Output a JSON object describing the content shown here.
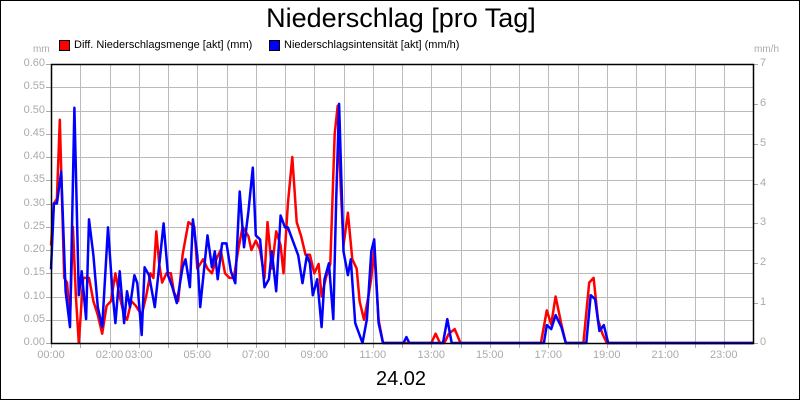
{
  "chart_data": {
    "type": "line",
    "title": "Niederschlag [pro Tag]",
    "xlabel": "24.02",
    "ylabel_left": "mm",
    "ylabel_right": "mm/h",
    "ylim_left": [
      0,
      0.6
    ],
    "ylim_right": [
      0,
      7
    ],
    "grid": true,
    "legend_position": "top",
    "y_ticks_left": [
      "0.00",
      "0.05",
      "0.10",
      "0.15",
      "0.20",
      "0.25",
      "0.30",
      "0.35",
      "0.40",
      "0.45",
      "0.50",
      "0.55",
      "0.60"
    ],
    "y_ticks_right": [
      "0",
      "1",
      "2",
      "3",
      "4",
      "5",
      "6",
      "7"
    ],
    "x_tick_labels": [
      {
        "label": "00:00",
        "hour": 0
      },
      {
        "label": "02:00",
        "hour": 2
      },
      {
        "label": "03:00",
        "hour": 3
      },
      {
        "label": "05:00",
        "hour": 5
      },
      {
        "label": "07:00",
        "hour": 7
      },
      {
        "label": "09:00",
        "hour": 9
      },
      {
        "label": "11:00",
        "hour": 11
      },
      {
        "label": "13:00",
        "hour": 13
      },
      {
        "label": "15:00",
        "hour": 15
      },
      {
        "label": "17:00",
        "hour": 17
      },
      {
        "label": "19:00",
        "hour": 19
      },
      {
        "label": "21:00",
        "hour": 21
      },
      {
        "label": "23:00",
        "hour": 23
      }
    ],
    "series": [
      {
        "name": "Diff. Niederschlagsmenge [akt] (mm)",
        "axis": "left",
        "color": "#ff0000",
        "points": [
          [
            0.0,
            0.21
          ],
          [
            0.1,
            0.3
          ],
          [
            0.2,
            0.31
          ],
          [
            0.3,
            0.48
          ],
          [
            0.45,
            0.14
          ],
          [
            0.55,
            0.13
          ],
          [
            0.65,
            0.05
          ],
          [
            0.75,
            0.25
          ],
          [
            0.85,
            0.1
          ],
          [
            0.95,
            0.0
          ],
          [
            1.1,
            0.14
          ],
          [
            1.3,
            0.14
          ],
          [
            1.45,
            0.09
          ],
          [
            1.6,
            0.06
          ],
          [
            1.75,
            0.02
          ],
          [
            1.9,
            0.08
          ],
          [
            2.05,
            0.09
          ],
          [
            2.2,
            0.15
          ],
          [
            2.35,
            0.1
          ],
          [
            2.5,
            0.06
          ],
          [
            2.6,
            0.05
          ],
          [
            2.75,
            0.09
          ],
          [
            2.9,
            0.08
          ],
          [
            3.0,
            0.07
          ],
          [
            3.1,
            0.06
          ],
          [
            3.25,
            0.1
          ],
          [
            3.4,
            0.15
          ],
          [
            3.5,
            0.14
          ],
          [
            3.6,
            0.24
          ],
          [
            3.7,
            0.17
          ],
          [
            3.8,
            0.13
          ],
          [
            3.95,
            0.15
          ],
          [
            4.1,
            0.15
          ],
          [
            4.2,
            0.11
          ],
          [
            4.35,
            0.09
          ],
          [
            4.5,
            0.19
          ],
          [
            4.7,
            0.26
          ],
          [
            4.9,
            0.25
          ],
          [
            5.0,
            0.16
          ],
          [
            5.2,
            0.18
          ],
          [
            5.35,
            0.16
          ],
          [
            5.5,
            0.15
          ],
          [
            5.65,
            0.18
          ],
          [
            5.8,
            0.2
          ],
          [
            5.95,
            0.15
          ],
          [
            6.1,
            0.14
          ],
          [
            6.25,
            0.14
          ],
          [
            6.4,
            0.2
          ],
          [
            6.55,
            0.25
          ],
          [
            6.75,
            0.23
          ],
          [
            6.85,
            0.2
          ],
          [
            7.0,
            0.22
          ],
          [
            7.15,
            0.2
          ],
          [
            7.3,
            0.14
          ],
          [
            7.4,
            0.26
          ],
          [
            7.55,
            0.16
          ],
          [
            7.7,
            0.24
          ],
          [
            7.85,
            0.21
          ],
          [
            7.95,
            0.15
          ],
          [
            8.1,
            0.3
          ],
          [
            8.25,
            0.4
          ],
          [
            8.4,
            0.26
          ],
          [
            8.55,
            0.23
          ],
          [
            8.7,
            0.19
          ],
          [
            8.85,
            0.19
          ],
          [
            9.0,
            0.15
          ],
          [
            9.15,
            0.17
          ],
          [
            9.25,
            0.1
          ],
          [
            9.4,
            0.14
          ],
          [
            9.55,
            0.17
          ],
          [
            9.7,
            0.45
          ],
          [
            9.8,
            0.51
          ],
          [
            9.9,
            0.34
          ],
          [
            10.0,
            0.21
          ],
          [
            10.15,
            0.28
          ],
          [
            10.3,
            0.18
          ],
          [
            10.45,
            0.16
          ],
          [
            10.55,
            0.09
          ],
          [
            10.7,
            0.05
          ],
          [
            10.85,
            0.1
          ],
          [
            10.95,
            0.14
          ],
          [
            11.05,
            0.2
          ],
          [
            11.2,
            0.05
          ],
          [
            11.35,
            0.0
          ],
          [
            12.0,
            0.0
          ],
          [
            13.0,
            0.0
          ],
          [
            13.15,
            0.02
          ],
          [
            13.3,
            0.0
          ],
          [
            13.45,
            0.0
          ],
          [
            13.6,
            0.02
          ],
          [
            13.8,
            0.03
          ],
          [
            14.0,
            0.0
          ],
          [
            16.75,
            0.0
          ],
          [
            16.95,
            0.07
          ],
          [
            17.1,
            0.04
          ],
          [
            17.25,
            0.1
          ],
          [
            17.45,
            0.04
          ],
          [
            17.6,
            0.0
          ],
          [
            18.2,
            0.0
          ],
          [
            18.4,
            0.13
          ],
          [
            18.55,
            0.14
          ],
          [
            18.7,
            0.05
          ],
          [
            18.85,
            0.02
          ],
          [
            19.0,
            0.0
          ],
          [
            24.0,
            0.0
          ]
        ]
      },
      {
        "name": "Niederschlagsintensität [akt] (mm/h)",
        "axis": "right",
        "color": "#0000ff",
        "points": [
          [
            0.0,
            1.85
          ],
          [
            0.1,
            3.5
          ],
          [
            0.2,
            3.5
          ],
          [
            0.35,
            4.3
          ],
          [
            0.5,
            1.3
          ],
          [
            0.65,
            0.4
          ],
          [
            0.8,
            5.9
          ],
          [
            0.95,
            1.2
          ],
          [
            1.05,
            1.8
          ],
          [
            1.2,
            0.6
          ],
          [
            1.3,
            3.1
          ],
          [
            1.45,
            2.2
          ],
          [
            1.6,
            0.9
          ],
          [
            1.75,
            0.4
          ],
          [
            1.95,
            2.9
          ],
          [
            2.1,
            1.3
          ],
          [
            2.2,
            0.5
          ],
          [
            2.35,
            1.8
          ],
          [
            2.5,
            0.5
          ],
          [
            2.6,
            1.3
          ],
          [
            2.7,
            0.9
          ],
          [
            2.85,
            1.7
          ],
          [
            2.95,
            1.5
          ],
          [
            3.1,
            0.2
          ],
          [
            3.2,
            1.9
          ],
          [
            3.35,
            1.7
          ],
          [
            3.55,
            0.9
          ],
          [
            3.65,
            1.6
          ],
          [
            3.85,
            3.0
          ],
          [
            4.0,
            1.7
          ],
          [
            4.15,
            1.4
          ],
          [
            4.3,
            1.0
          ],
          [
            4.5,
            1.9
          ],
          [
            4.6,
            2.1
          ],
          [
            4.75,
            1.4
          ],
          [
            4.85,
            3.1
          ],
          [
            5.0,
            2.2
          ],
          [
            5.1,
            0.9
          ],
          [
            5.35,
            2.7
          ],
          [
            5.5,
            1.9
          ],
          [
            5.6,
            2.3
          ],
          [
            5.7,
            1.6
          ],
          [
            5.85,
            2.5
          ],
          [
            6.0,
            2.5
          ],
          [
            6.15,
            1.8
          ],
          [
            6.3,
            1.5
          ],
          [
            6.45,
            3.8
          ],
          [
            6.6,
            2.4
          ],
          [
            6.75,
            3.3
          ],
          [
            6.9,
            4.4
          ],
          [
            7.0,
            2.7
          ],
          [
            7.15,
            2.6
          ],
          [
            7.3,
            1.4
          ],
          [
            7.45,
            1.6
          ],
          [
            7.55,
            2.3
          ],
          [
            7.7,
            1.3
          ],
          [
            7.85,
            3.2
          ],
          [
            8.0,
            2.9
          ],
          [
            8.1,
            2.9
          ],
          [
            8.3,
            2.5
          ],
          [
            8.45,
            2.2
          ],
          [
            8.6,
            1.5
          ],
          [
            8.75,
            2.2
          ],
          [
            8.85,
            2.0
          ],
          [
            8.95,
            1.2
          ],
          [
            9.1,
            1.6
          ],
          [
            9.25,
            0.4
          ],
          [
            9.35,
            1.6
          ],
          [
            9.5,
            2.0
          ],
          [
            9.65,
            0.6
          ],
          [
            9.75,
            3.6
          ],
          [
            9.85,
            6.0
          ],
          [
            10.0,
            2.3
          ],
          [
            10.15,
            1.7
          ],
          [
            10.25,
            2.1
          ],
          [
            10.4,
            0.5
          ],
          [
            10.5,
            0.3
          ],
          [
            10.65,
            0.0
          ],
          [
            10.8,
            0.6
          ],
          [
            10.95,
            2.3
          ],
          [
            11.05,
            2.6
          ],
          [
            11.2,
            0.5
          ],
          [
            11.35,
            0.0
          ],
          [
            12.05,
            0.0
          ],
          [
            12.15,
            0.15
          ],
          [
            12.25,
            0.0
          ],
          [
            13.4,
            0.0
          ],
          [
            13.55,
            0.6
          ],
          [
            13.7,
            0.0
          ],
          [
            16.85,
            0.0
          ],
          [
            16.95,
            0.45
          ],
          [
            17.1,
            0.35
          ],
          [
            17.25,
            0.7
          ],
          [
            17.45,
            0.4
          ],
          [
            17.6,
            0.0
          ],
          [
            18.3,
            0.0
          ],
          [
            18.45,
            1.2
          ],
          [
            18.6,
            1.1
          ],
          [
            18.75,
            0.3
          ],
          [
            18.9,
            0.45
          ],
          [
            19.05,
            0.0
          ],
          [
            24.0,
            0.0
          ]
        ]
      }
    ]
  },
  "header": {
    "title": "Niederschlag [pro Tag]"
  },
  "legend": {
    "items": [
      {
        "label": "Diff. Niederschlagsmenge [akt] (mm)",
        "color": "#ff0000"
      },
      {
        "label": "Niederschlagsintensität [akt] (mm/h)",
        "color": "#0000ff"
      }
    ]
  },
  "axes": {
    "left_unit": "mm",
    "right_unit": "mm/h",
    "date_label": "24.02"
  }
}
